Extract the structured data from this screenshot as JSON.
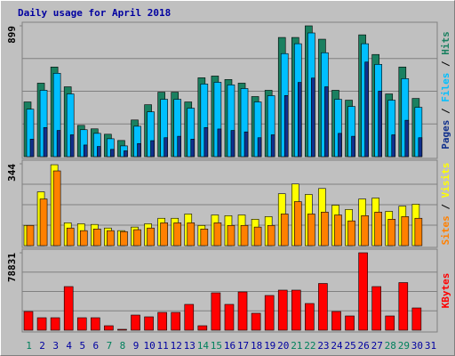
{
  "title": "Daily usage for April 2018",
  "chart_data": [
    {
      "type": "bar",
      "ylim": [
        0,
        899
      ],
      "yticks": [
        899
      ],
      "grid": true,
      "legend_separator": " / ",
      "series": [
        {
          "name": "Hits",
          "color": "#1a8060",
          "offset": 0,
          "values": [
            376,
            505,
            616,
            480,
            215,
            191,
            154,
            111,
            252,
            357,
            443,
            443,
            376,
            542,
            554,
            530,
            505,
            413,
            456,
            819,
            819,
            899,
            807,
            456,
            388,
            837,
            702,
            431,
            616,
            400,
            0
          ]
        },
        {
          "name": "Files",
          "color": "#00bfff",
          "offset": 1,
          "values": [
            326,
            456,
            573,
            431,
            185,
            160,
            123,
            74,
            209,
            308,
            394,
            394,
            333,
            499,
            511,
            493,
            468,
            376,
            419,
            708,
            776,
            850,
            714,
            394,
            345,
            776,
            634,
            388,
            536,
            339,
            0
          ]
        },
        {
          "name": "Pages",
          "color": "#10308c",
          "offset": 2,
          "values": [
            120,
            200,
            180,
            150,
            80,
            70,
            50,
            40,
            90,
            110,
            130,
            140,
            120,
            200,
            190,
            180,
            170,
            130,
            150,
            420,
            510,
            540,
            480,
            160,
            140,
            650,
            450,
            150,
            250,
            130,
            0
          ]
        }
      ]
    },
    {
      "type": "bar",
      "ylim": [
        0,
        344
      ],
      "yticks": [
        344
      ],
      "grid": true,
      "legend_separator": " / ",
      "series": [
        {
          "name": "Visits",
          "color": "#ffff00",
          "offset": 0,
          "values": [
            85,
            226,
            340,
            96,
            92,
            89,
            74,
            63,
            78,
            92,
            115,
            115,
            133,
            85,
            129,
            126,
            129,
            111,
            122,
            218,
            259,
            215,
            240,
            170,
            152,
            196,
            200,
            144,
            166,
            174,
            0
          ]
        },
        {
          "name": "Sites",
          "color": "#ff8000",
          "offset": 1,
          "values": [
            85,
            196,
            314,
            74,
            63,
            70,
            63,
            59,
            67,
            74,
            96,
            96,
            96,
            70,
            96,
            85,
            85,
            78,
            85,
            133,
            185,
            133,
            141,
            129,
            104,
            126,
            141,
            111,
            122,
            115,
            0
          ]
        }
      ]
    },
    {
      "type": "bar",
      "ylim": [
        0,
        78831
      ],
      "yticks": [
        78831
      ],
      "grid": true,
      "categories": [
        "1",
        "2",
        "3",
        "4",
        "5",
        "6",
        "7",
        "8",
        "9",
        "10",
        "11",
        "12",
        "13",
        "14",
        "15",
        "16",
        "17",
        "18",
        "19",
        "20",
        "21",
        "22",
        "23",
        "24",
        "25",
        "26",
        "27",
        "28",
        "29",
        "30",
        "31"
      ],
      "label_colors": [
        "#00805c",
        "#0000a0",
        "#0000a0",
        "#0000a0",
        "#0000a0",
        "#0000a0",
        "#00805c",
        "#00805c",
        "#0000a0",
        "#0000a0",
        "#0000a0",
        "#0000a0",
        "#0000a0",
        "#00805c",
        "#00805c",
        "#0000a0",
        "#0000a0",
        "#0000a0",
        "#0000a0",
        "#0000a0",
        "#00805c",
        "#00805c",
        "#0000a0",
        "#0000a0",
        "#0000a0",
        "#0000a0",
        "#0000a0",
        "#00805c",
        "#00805c",
        "#0000a0",
        "#0000a0"
      ],
      "series": [
        {
          "name": "KBytes",
          "color": "#ff0000",
          "offset": 0,
          "values": [
            19028,
            12685,
            12685,
            44400,
            12685,
            12685,
            4530,
            906,
            15400,
            13600,
            18120,
            18120,
            26280,
            4530,
            38060,
            26280,
            38960,
            17220,
            35340,
            40780,
            40780,
            27180,
            47560,
            19030,
            14500,
            78831,
            44400,
            14500,
            48470,
            22650,
            0
          ]
        }
      ]
    }
  ]
}
